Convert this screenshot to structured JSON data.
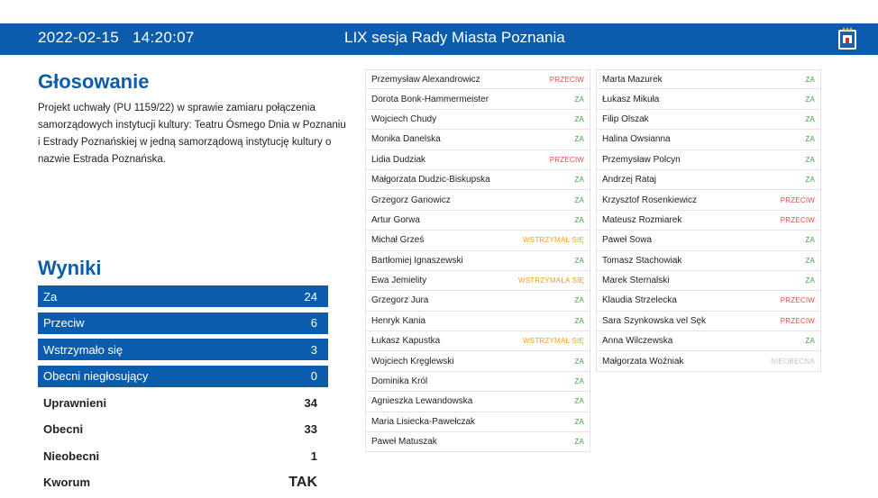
{
  "header": {
    "datetime": "2022-02-15   14:20:07",
    "session": "LIX sesja Rady Miasta Poznania",
    "crest_icon": "city-crest-icon",
    "background": "#0b5cad"
  },
  "voting": {
    "title": "Głosowanie",
    "description": "Projekt uchwały (PU 1159/22) w sprawie zamiaru połączenia samorządowych instytucji kultury: Teatru Ósmego Dnia w Poznaniu i Estrady Poznańskiej w jedną samorządową instytucję kultury o nazwie Estrada Poznańska."
  },
  "results": {
    "title": "Wyniki",
    "rows": [
      {
        "label": "Za",
        "value": "24"
      },
      {
        "label": "Przeciw",
        "value": "6"
      },
      {
        "label": "Wstrzymało się",
        "value": "3"
      },
      {
        "label": "Obecni niegłosujący",
        "value": "0"
      },
      {
        "label": "Uprawnieni",
        "value": "34"
      },
      {
        "label": "Obecni",
        "value": "33"
      },
      {
        "label": "Nieobecni",
        "value": "1"
      },
      {
        "label": "Kworum",
        "value": "TAK"
      }
    ]
  },
  "votes_col1": [
    {
      "name": "Przemysław Alexandrowicz",
      "vote": "PRZECIW"
    },
    {
      "name": "Dorota Bonk-Hammermeister",
      "vote": "ZA"
    },
    {
      "name": "Wojciech Chudy",
      "vote": "ZA"
    },
    {
      "name": "Monika Danelska",
      "vote": "ZA"
    },
    {
      "name": "Lidia Dudziak",
      "vote": "PRZECIW"
    },
    {
      "name": "Małgorzata Dudzic-Biskupska",
      "vote": "ZA"
    },
    {
      "name": "Grzegorz Ganowicz",
      "vote": "ZA"
    },
    {
      "name": "Artur Gorwa",
      "vote": "ZA"
    },
    {
      "name": "Michał Grześ",
      "vote": "WSTRZYMAŁ SIĘ"
    },
    {
      "name": "Bartłomiej Ignaszewski",
      "vote": "ZA"
    },
    {
      "name": "Ewa Jemielity",
      "vote": "WSTRZYMAŁA SIĘ"
    },
    {
      "name": "Grzegorz Jura",
      "vote": "ZA"
    },
    {
      "name": "Henryk Kania",
      "vote": "ZA"
    },
    {
      "name": "Łukasz Kapustka",
      "vote": "WSTRZYMAŁ SIĘ"
    },
    {
      "name": "Wojciech Kręglewski",
      "vote": "ZA"
    },
    {
      "name": "Dominika Król",
      "vote": "ZA"
    },
    {
      "name": "Agnieszka Lewandowska",
      "vote": "ZA"
    },
    {
      "name": "Maria Lisiecka-Pawełczak",
      "vote": "ZA"
    },
    {
      "name": "Paweł Matuszak",
      "vote": "ZA"
    }
  ],
  "votes_col2": [
    {
      "name": "Marta Mazurek",
      "vote": "ZA"
    },
    {
      "name": "Łukasz Mikuła",
      "vote": "ZA"
    },
    {
      "name": "Filip Olszak",
      "vote": "ZA"
    },
    {
      "name": "Halina Owsianna",
      "vote": "ZA"
    },
    {
      "name": "Przemysław Polcyn",
      "vote": "ZA"
    },
    {
      "name": "Andrzej Rataj",
      "vote": "ZA"
    },
    {
      "name": "Krzysztof Rosenkiewicz",
      "vote": "PRZECIW"
    },
    {
      "name": "Mateusz Rozmiarek",
      "vote": "PRZECIW"
    },
    {
      "name": "Paweł Sowa",
      "vote": "ZA"
    },
    {
      "name": "Tomasz Stachowiak",
      "vote": "ZA"
    },
    {
      "name": "Marek Sternalski",
      "vote": "ZA"
    },
    {
      "name": "Klaudia Strzelecka",
      "vote": "PRZECIW"
    },
    {
      "name": "Sara Szynkowska vel Sęk",
      "vote": "PRZECIW"
    },
    {
      "name": "Anna Wilczewska",
      "vote": "ZA"
    },
    {
      "name": "Małgorzata Woźniak",
      "vote": "NIEOBECNA"
    }
  ]
}
